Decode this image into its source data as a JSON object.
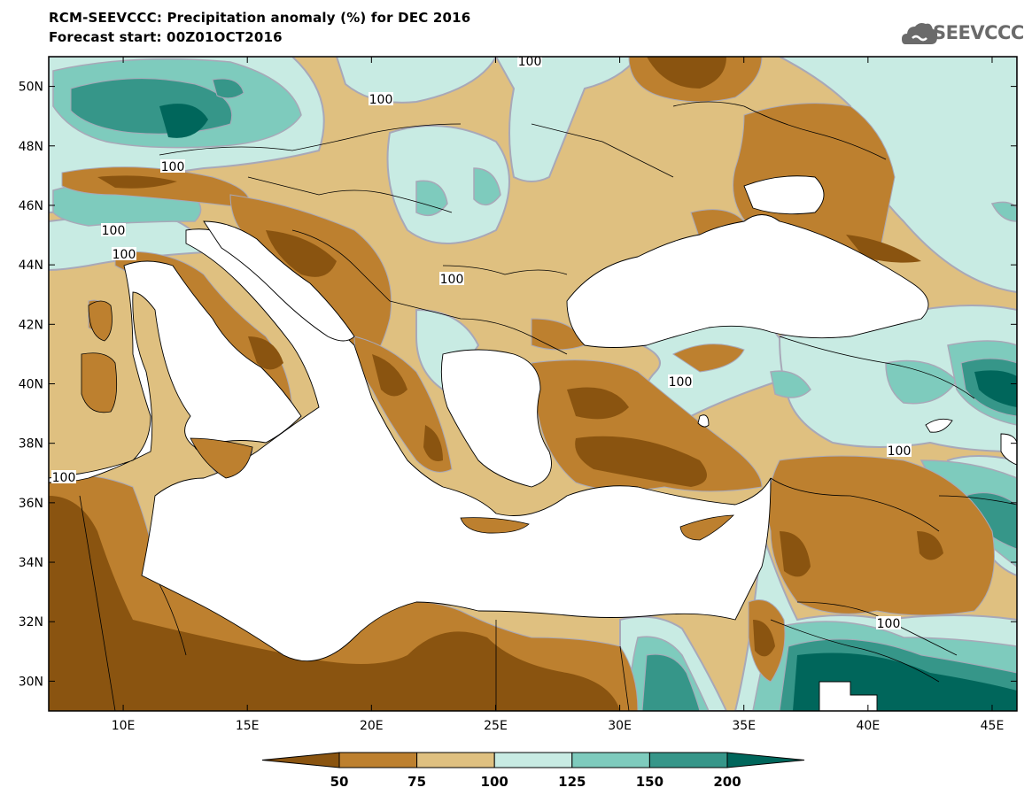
{
  "title": {
    "line1": "RCM-SEEVCCC: Precipitation anomaly (%) for DEC 2016",
    "line2": "Forecast start: 00Z01OCT2016"
  },
  "logo": {
    "text": "SEEVCCC",
    "icon": "cloud-logo-icon"
  },
  "map": {
    "variable": "Precipitation anomaly",
    "unit": "%",
    "lon_range": [
      7,
      46
    ],
    "lat_range": [
      29,
      51
    ],
    "lon_ticks": [
      {
        "value": 10,
        "label": "10E"
      },
      {
        "value": 15,
        "label": "15E"
      },
      {
        "value": 20,
        "label": "20E"
      },
      {
        "value": 25,
        "label": "25E"
      },
      {
        "value": 30,
        "label": "30E"
      },
      {
        "value": 35,
        "label": "35E"
      },
      {
        "value": 40,
        "label": "40E"
      },
      {
        "value": 45,
        "label": "45E"
      }
    ],
    "lat_ticks": [
      {
        "value": 30,
        "label": "30N"
      },
      {
        "value": 32,
        "label": "32N"
      },
      {
        "value": 34,
        "label": "34N"
      },
      {
        "value": 36,
        "label": "36N"
      },
      {
        "value": 38,
        "label": "38N"
      },
      {
        "value": 40,
        "label": "40N"
      },
      {
        "value": 42,
        "label": "42N"
      },
      {
        "value": 44,
        "label": "44N"
      },
      {
        "value": 46,
        "label": "46N"
      },
      {
        "value": 48,
        "label": "48N"
      },
      {
        "value": 50,
        "label": "50N"
      }
    ],
    "contour_label": "100"
  },
  "colorbar": {
    "levels": [
      "50",
      "75",
      "100",
      "125",
      "150",
      "200"
    ],
    "colors": [
      "#8a5410",
      "#bd802f",
      "#dfc080",
      "#c8ebe3",
      "#7ecbbd",
      "#369689",
      "#00665b"
    ]
  },
  "colors": {
    "sea": "#ffffff",
    "default_land": "#dfc080"
  }
}
